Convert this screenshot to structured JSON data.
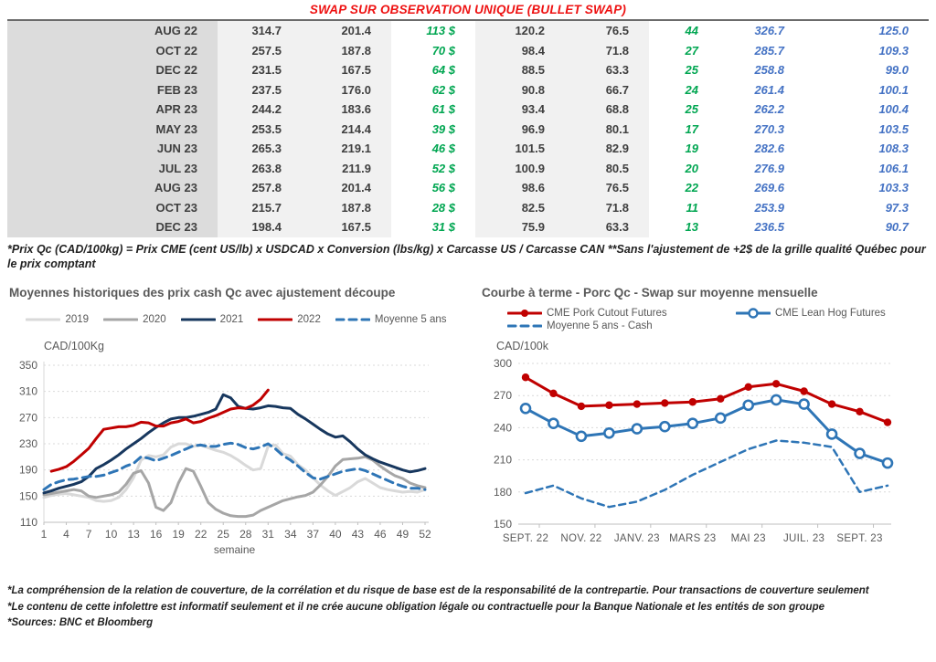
{
  "title": "SWAP SUR OBSERVATION UNIQUE (BULLET SWAP)",
  "colors": {
    "title_red": "#ee1111",
    "positive_green": "#00a651",
    "swap_blue": "#4472c4",
    "grid_gray": "#d9d9d9",
    "axis_gray": "#bfbfbf",
    "text_gray": "#595959"
  },
  "table": {
    "rows": [
      [
        "AUG 22",
        "314.7",
        "201.4",
        "113 $",
        "120.2",
        "76.5",
        "44",
        "326.7",
        "125.0"
      ],
      [
        "OCT 22",
        "257.5",
        "187.8",
        "70 $",
        "98.4",
        "71.8",
        "27",
        "285.7",
        "109.3"
      ],
      [
        "DEC 22",
        "231.5",
        "167.5",
        "64 $",
        "88.5",
        "63.3",
        "25",
        "258.8",
        "99.0"
      ],
      [
        "FEB 23",
        "237.5",
        "176.0",
        "62 $",
        "90.8",
        "66.7",
        "24",
        "261.4",
        "100.1"
      ],
      [
        "APR 23",
        "244.2",
        "183.6",
        "61 $",
        "93.4",
        "68.8",
        "25",
        "262.2",
        "100.4"
      ],
      [
        "MAY 23",
        "253.5",
        "214.4",
        "39 $",
        "96.9",
        "80.1",
        "17",
        "270.3",
        "103.5"
      ],
      [
        "JUN 23",
        "265.3",
        "219.1",
        "46 $",
        "101.5",
        "82.9",
        "19",
        "282.6",
        "108.3"
      ],
      [
        "JUL 23",
        "263.8",
        "211.9",
        "52 $",
        "100.9",
        "80.5",
        "20",
        "276.9",
        "106.1"
      ],
      [
        "AUG 23",
        "257.8",
        "201.4",
        "56 $",
        "98.6",
        "76.5",
        "22",
        "269.6",
        "103.3"
      ],
      [
        "OCT 23",
        "215.7",
        "187.8",
        "28 $",
        "82.5",
        "71.8",
        "11",
        "253.9",
        "97.3"
      ],
      [
        "DEC 23",
        "198.4",
        "167.5",
        "31 $",
        "75.9",
        "63.3",
        "13",
        "236.5",
        "90.7"
      ]
    ]
  },
  "table_footnote": "*Prix Qc (CAD/100kg) = Prix CME (cent US/lb) x USDCAD x Conversion (lbs/kg) x Carcasse US / Carcasse CAN **Sans l'ajustement de +2$ de la grille qualité Québec pour le prix comptant",
  "chart_data": [
    {
      "type": "line",
      "title": "Moyennes historiques des prix cash Qc avec ajustement découpe",
      "ylabel": "CAD/100Kg",
      "xlabel": "semaine",
      "ylim": [
        110,
        350
      ],
      "yticks": [
        110,
        150,
        190,
        230,
        270,
        310,
        350
      ],
      "xticks": [
        1,
        4,
        7,
        10,
        13,
        16,
        19,
        22,
        25,
        28,
        31,
        34,
        37,
        40,
        43,
        46,
        49,
        52
      ],
      "grid": "dashed-horizontal",
      "legend_position": "top",
      "series": [
        {
          "name": "2019",
          "color": "#d9d9d9",
          "dash": false,
          "x_start": 1,
          "values": [
            148,
            151,
            153,
            154,
            152,
            150,
            148,
            143,
            142,
            143,
            148,
            160,
            178,
            205,
            212,
            210,
            213,
            225,
            230,
            230,
            226,
            228,
            224,
            220,
            217,
            212,
            205,
            197,
            190,
            192,
            226,
            228,
            215,
            211,
            198,
            190,
            178,
            167,
            158,
            151,
            157,
            163,
            172,
            177,
            170,
            163,
            160,
            158,
            156,
            157,
            156,
            160
          ]
        },
        {
          "name": "2020",
          "color": "#a6a6a6",
          "dash": false,
          "x_start": 1,
          "values": [
            152,
            154,
            156,
            158,
            160,
            158,
            150,
            148,
            150,
            152,
            156,
            168,
            185,
            189,
            170,
            133,
            128,
            140,
            170,
            192,
            188,
            165,
            140,
            130,
            124,
            120,
            119,
            119,
            121,
            128,
            133,
            138,
            143,
            146,
            149,
            151,
            156,
            167,
            180,
            196,
            206,
            207,
            208,
            210,
            205,
            196,
            188,
            181,
            177,
            170,
            166,
            163
          ]
        },
        {
          "name": "2021",
          "color": "#17375e",
          "dash": false,
          "x_start": 1,
          "values": [
            155,
            158,
            162,
            165,
            168,
            172,
            180,
            192,
            198,
            205,
            213,
            222,
            230,
            238,
            247,
            255,
            262,
            268,
            270,
            270,
            272,
            275,
            278,
            283,
            305,
            300,
            287,
            284,
            283,
            285,
            288,
            287,
            285,
            284,
            275,
            268,
            260,
            252,
            245,
            240,
            242,
            233,
            222,
            213,
            207,
            202,
            198,
            194,
            190,
            187,
            189,
            192
          ]
        },
        {
          "name": "2022",
          "color": "#c00000",
          "dash": false,
          "x_start": 2,
          "values": [
            188,
            191,
            195,
            203,
            213,
            223,
            238,
            252,
            254,
            256,
            256,
            258,
            263,
            262,
            257,
            257,
            262,
            264,
            268,
            262,
            264,
            269,
            273,
            278,
            283,
            285,
            284,
            289,
            298,
            312
          ]
        },
        {
          "name": "Moyenne 5 ans",
          "color": "#2e75b6",
          "dash": true,
          "x_start": 1,
          "values": [
            160,
            168,
            172,
            175,
            176,
            178,
            180,
            180,
            182,
            186,
            190,
            196,
            200,
            210,
            208,
            204,
            208,
            212,
            217,
            222,
            227,
            228,
            226,
            226,
            229,
            231,
            229,
            224,
            222,
            225,
            230,
            222,
            212,
            205,
            196,
            186,
            178,
            176,
            180,
            184,
            188,
            190,
            192,
            189,
            184,
            179,
            174,
            169,
            165,
            162,
            162,
            160
          ]
        }
      ]
    },
    {
      "type": "line",
      "title": "Courbe à terme - Porc Qc - Swap sur moyenne mensuelle",
      "ylabel": "CAD/100k",
      "xlabel": "",
      "ylim": [
        150,
        300
      ],
      "yticks": [
        150,
        180,
        210,
        240,
        270,
        300
      ],
      "x_labels": [
        "SEPT. 22",
        "NOV. 22",
        "JANV. 23",
        "MARS 23",
        "MAI 23",
        "JUIL. 23",
        "SEPT. 23"
      ],
      "label_every": 2,
      "grid": "dashed-horizontal",
      "legend_position": "top",
      "series": [
        {
          "name": "CME Pork Cutout Futures",
          "color": "#c00000",
          "dash": false,
          "marker": "filled",
          "values": [
            287,
            272,
            260,
            261,
            262,
            263,
            264,
            267,
            278,
            281,
            274,
            262,
            255,
            245
          ]
        },
        {
          "name": "CME Lean Hog Futures",
          "color": "#2e75b6",
          "dash": false,
          "marker": "open",
          "values": [
            258,
            244,
            232,
            235,
            239,
            241,
            244,
            249,
            261,
            266,
            262,
            234,
            216,
            207
          ]
        },
        {
          "name": "Moyenne 5 ans - Cash",
          "color": "#2e75b6",
          "dash": true,
          "marker": "none",
          "values": [
            179,
            186,
            174,
            166,
            171,
            182,
            196,
            208,
            220,
            228,
            226,
            222,
            180,
            186
          ]
        }
      ]
    }
  ],
  "footnotes": [
    "*La compréhension de la relation de couverture, de la corrélation et du risque de base est de la responsabilité de la contrepartie. Pour transactions de couverture seulement",
    "*Le contenu de cette infolettre est informatif seulement et il ne crée aucune obligation légale ou contractuelle pour la Banque Nationale et les entités de son groupe",
    "*Sources: BNC et Bloomberg"
  ]
}
